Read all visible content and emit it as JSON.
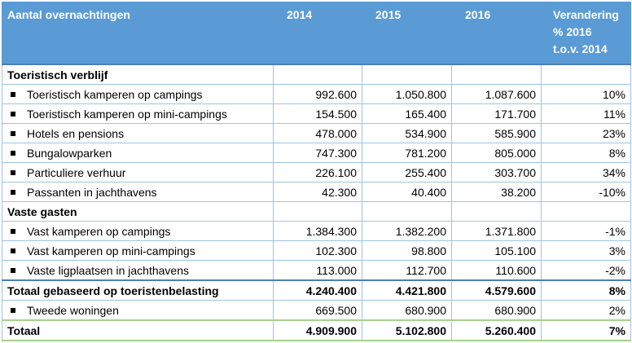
{
  "header": {
    "label": "Aantal overnachtingen",
    "year1": "2014",
    "year2": "2015",
    "year3": "2016",
    "change_line1": "Verandering",
    "change_line2": "% 2016",
    "change_line3": "t.o.v. 2014"
  },
  "sections": [
    {
      "title": "Toeristisch verblijf",
      "rows": [
        {
          "label": "Toeristisch kamperen op campings",
          "v2014": "992.600",
          "v2015": "1.050.800",
          "v2016": "1.087.600",
          "change": "10%"
        },
        {
          "label": "Toeristisch kamperen op mini-campings",
          "v2014": "154.500",
          "v2015": "165.400",
          "v2016": "171.700",
          "change": "11%"
        },
        {
          "label": "Hotels en pensions",
          "v2014": "478.000",
          "v2015": "534.900",
          "v2016": "585.900",
          "change": "23%"
        },
        {
          "label": "Bungalowparken",
          "v2014": "747.300",
          "v2015": "781.200",
          "v2016": "805.000",
          "change": "8%"
        },
        {
          "label": "Particuliere verhuur",
          "v2014": "226.100",
          "v2015": "255.400",
          "v2016": "303.700",
          "change": "34%"
        },
        {
          "label": "Passanten in jachthavens",
          "v2014": "42.300",
          "v2015": "40.400",
          "v2016": "38.200",
          "change": "-10%"
        }
      ]
    },
    {
      "title": "Vaste gasten",
      "rows": [
        {
          "label": "Vast kamperen op campings",
          "v2014": "1.384.300",
          "v2015": "1.382.200",
          "v2016": "1.371.800",
          "change": "-1%"
        },
        {
          "label": "Vast kamperen op mini-campings",
          "v2014": "102.300",
          "v2015": "98.800",
          "v2016": "105.100",
          "change": "3%"
        },
        {
          "label": "Vaste ligplaatsen in jachthavens",
          "v2014": "113.000",
          "v2015": "112.700",
          "v2016": "110.600",
          "change": "-2%"
        }
      ]
    }
  ],
  "subtotal": {
    "label": "Totaal gebaseerd op toeristenbelasting",
    "v2014": "4.240.400",
    "v2015": "4.421.800",
    "v2016": "4.579.600",
    "change": "8%"
  },
  "extra_row": {
    "label": "Tweede woningen",
    "v2014": "669.500",
    "v2015": "680.900",
    "v2016": "680.900",
    "change": "2%"
  },
  "total": {
    "label": "Totaal",
    "v2014": "4.909.900",
    "v2015": "5.102.800",
    "v2016": "5.260.400",
    "change": "7%"
  },
  "colors": {
    "header_bg": "#5b9bd5",
    "grid": "#9dc3e6",
    "total_line": "#a8d08d"
  }
}
